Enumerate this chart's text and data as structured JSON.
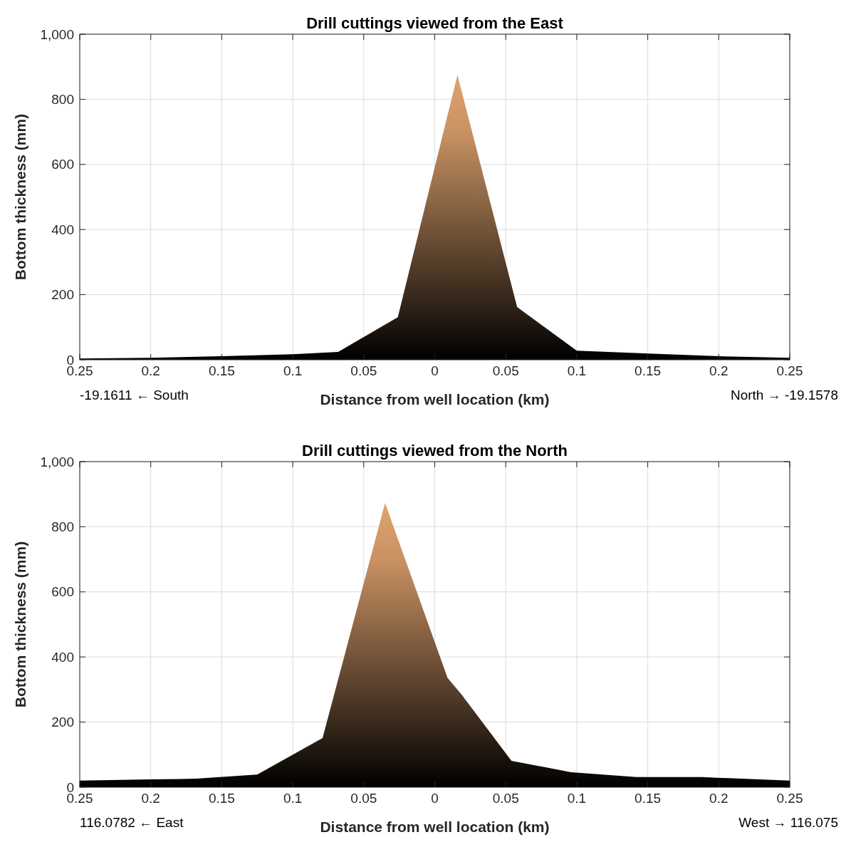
{
  "chart_data": [
    {
      "type": "area",
      "title": "Drill cuttings viewed from the East",
      "xlabel": "Distance from well location (km)",
      "ylabel": "Bottom thickness (mm)",
      "series": [
        {
          "color": "#e0a36e",
          "x": [
            -0.25,
            -0.2,
            -0.15,
            -0.1,
            -0.068,
            -0.026,
            0.016,
            0.058,
            0.1,
            0.157,
            0.2,
            0.25
          ],
          "values": [
            4,
            6,
            11,
            17,
            24,
            131,
            875,
            162,
            28,
            18,
            11,
            6
          ]
        }
      ],
      "xlim": [
        -0.25,
        0.25
      ],
      "xticks": [
        {
          "value": -0.25,
          "label": "0.25"
        },
        {
          "value": -0.2,
          "label": "0.2"
        },
        {
          "value": -0.15,
          "label": "0.15"
        },
        {
          "value": -0.1,
          "label": "0.1"
        },
        {
          "value": -0.05,
          "label": "0.05"
        },
        0,
        0.05,
        0.1,
        0.15,
        0.2,
        0.25
      ],
      "ylim": [
        0,
        1000
      ],
      "yticks": [
        0,
        200,
        400,
        600,
        800,
        {
          "value": 1000,
          "label": "1,000"
        }
      ],
      "grid": true,
      "annotations": [
        "-19.1611  ← South",
        "North →  -19.1578"
      ]
    },
    {
      "type": "area",
      "title": "Drill cuttings viewed from the North",
      "xlabel": "Distance from well location (km)",
      "ylabel": "Bottom thickness (mm)",
      "series": [
        {
          "color": "#e0a36e",
          "x": [
            -0.25,
            -0.2,
            -0.168,
            -0.125,
            -0.079,
            -0.035,
            0.009,
            0.019,
            0.054,
            0.096,
            0.142,
            0.188,
            0.25
          ],
          "values": [
            20,
            24,
            26,
            39,
            151,
            873,
            336,
            284,
            81,
            46,
            31,
            31,
            20
          ]
        }
      ],
      "xlim": [
        -0.25,
        0.25
      ],
      "xticks": [
        {
          "value": -0.25,
          "label": "0.25"
        },
        {
          "value": -0.2,
          "label": "0.2"
        },
        {
          "value": -0.15,
          "label": "0.15"
        },
        {
          "value": -0.1,
          "label": "0.1"
        },
        {
          "value": -0.05,
          "label": "0.05"
        },
        0,
        0.05,
        0.1,
        0.15,
        0.2,
        0.25
      ],
      "ylim": [
        0,
        1000
      ],
      "yticks": [
        0,
        200,
        400,
        600,
        800,
        {
          "value": 1000,
          "label": "1,000"
        }
      ],
      "grid": true,
      "annotations": [
        "116.0782  ← East",
        "West →  116.075"
      ]
    }
  ]
}
